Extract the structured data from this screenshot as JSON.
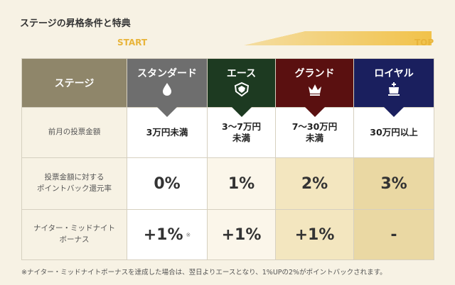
{
  "title": "ステージの昇格条件と特典",
  "progress": {
    "start_label": "START",
    "end_label": "TOP",
    "color": "#f1c24a"
  },
  "table": {
    "stage_header": "ステージ",
    "stages": [
      {
        "name": "スタンダード",
        "icon": "drop-icon",
        "color": "#6e6e6e"
      },
      {
        "name": "エース",
        "icon": "shield-icon",
        "color": "#1d3a21"
      },
      {
        "name": "グランド",
        "icon": "crown-icon",
        "color": "#5a1010"
      },
      {
        "name": "ロイヤル",
        "icon": "royal-crown-icon",
        "color": "#1a1f5e"
      }
    ],
    "rows": {
      "amount": {
        "label": "前月の投票金額",
        "values": [
          "3万円未満",
          "3～7万円\n未満",
          "7～30万円\n未満",
          "30万円以上"
        ]
      },
      "rate": {
        "label": "投票金額に対する\nポイントバック還元率",
        "values": [
          "0%",
          "1%",
          "2%",
          "3%"
        ]
      },
      "bonus": {
        "label": "ナイター・ミッドナイト\nボーナス",
        "values": [
          "+1%",
          "+1%",
          "+1%",
          "-"
        ],
        "marker": "※"
      }
    }
  },
  "footnote": "※ナイター・ミッドナイトボーナスを達成した場合は、翌日よりエースとなり、1%UPの2%がポイントバックされます。"
}
